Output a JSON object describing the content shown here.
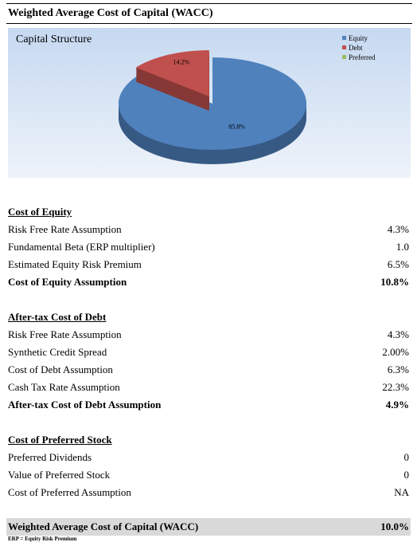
{
  "header": {
    "title": "Weighted Average Cost of Capital (WACC)"
  },
  "chart_data": {
    "type": "pie",
    "title": "Capital Structure",
    "categories": [
      "Equity",
      "Debt",
      "Preferred"
    ],
    "values": [
      85.8,
      14.2,
      0
    ],
    "value_labels": [
      "85.8%",
      "14.2%",
      null
    ],
    "colors": [
      "#4f81bd",
      "#c0504d",
      "#9bbb59"
    ],
    "exploded": [
      false,
      true,
      false
    ],
    "legend": "top-right"
  },
  "sections": [
    {
      "heading": "Cost of Equity",
      "rows": [
        {
          "label": "Risk Free Rate Assumption",
          "value": "4.3%"
        },
        {
          "label": "Fundamental Beta (ERP multiplier)",
          "value": "1.0"
        },
        {
          "label": "Estimated Equity Risk Premium",
          "value": "6.5%"
        }
      ],
      "total": {
        "label": "Cost of Equity Assumption",
        "value": "10.8%"
      }
    },
    {
      "heading": "After-tax Cost of Debt",
      "rows": [
        {
          "label": "Risk Free Rate Assumption",
          "value": "4.3%"
        },
        {
          "label": "Synthetic Credit Spread",
          "value": "2.00%"
        },
        {
          "label": "Cost of Debt Assumption",
          "value": "6.3%"
        },
        {
          "label": "Cash Tax Rate Assumption",
          "value": "22.3%"
        }
      ],
      "total": {
        "label": "After-tax Cost of Debt Assumption",
        "value": "4.9%"
      }
    },
    {
      "heading": "Cost of Preferred Stock",
      "rows": [
        {
          "label": "Preferred Dividends",
          "value": "0"
        },
        {
          "label": "Value of Preferred Stock",
          "value": "0"
        },
        {
          "label": "Cost of Preferred Assumption",
          "value": "NA"
        }
      ]
    }
  ],
  "wacc": {
    "label": "Weighted Average Cost of Capital (WACC)",
    "value": "10.0%"
  },
  "footnote": "ERP = Equity Risk Premium"
}
